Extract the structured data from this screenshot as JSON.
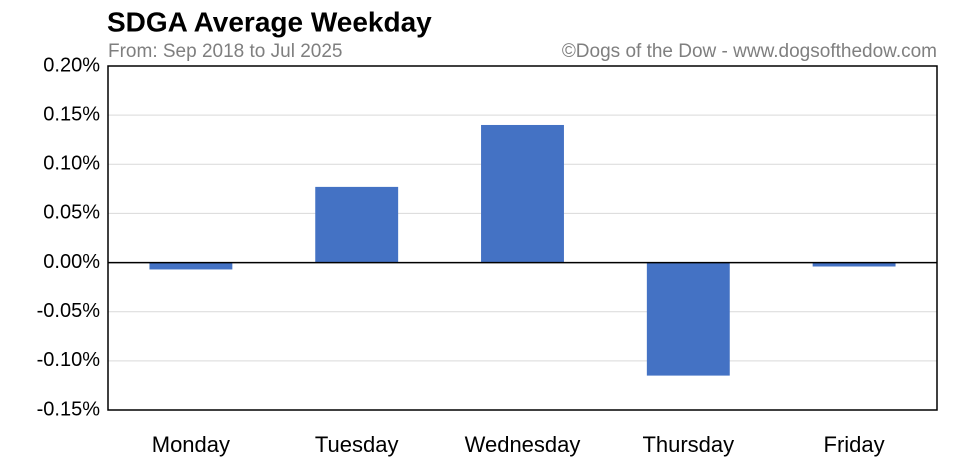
{
  "chart_data": {
    "type": "bar",
    "title": "SDGA Average Weekday",
    "subtitle": "From: Sep 2018 to Jul 2025",
    "credit": "©Dogs of the Dow - www.dogsofthedow.com",
    "categories": [
      "Monday",
      "Tuesday",
      "Wednesday",
      "Thursday",
      "Friday"
    ],
    "values": [
      -0.007,
      0.077,
      0.14,
      -0.115,
      -0.004
    ],
    "color": "#4472c4",
    "ylim": [
      -0.15,
      0.2
    ],
    "yticks": [
      {
        "value": -0.15,
        "label": "-0.15%"
      },
      {
        "value": -0.1,
        "label": "-0.10%"
      },
      {
        "value": -0.05,
        "label": "-0.05%"
      },
      {
        "value": 0,
        "label": "0.00%"
      },
      {
        "value": 0.05,
        "label": "0.05%"
      },
      {
        "value": 0.1,
        "label": "0.10%"
      },
      {
        "value": 0.15,
        "label": "0.15%"
      },
      {
        "value": 0.2,
        "label": "0.20%"
      }
    ],
    "grid": true
  }
}
